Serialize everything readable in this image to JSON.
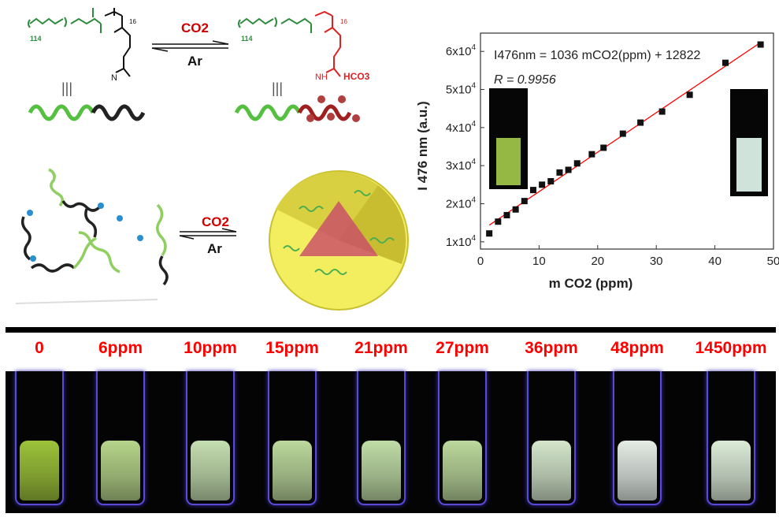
{
  "scheme_top": {
    "left_polymer": {
      "peg_repeat": "114",
      "pdmaema_repeat": "16",
      "amine": "N"
    },
    "right_polymer": {
      "peg_repeat": "114",
      "pdmaema_repeat": "16",
      "amine": "NH",
      "counterion": "HCO3"
    },
    "forward_label": "CO2",
    "reverse_label": "Ar",
    "equiv_symbol": "|||"
  },
  "scheme_bottom": {
    "forward_label": "CO2",
    "reverse_label": "Ar"
  },
  "colors": {
    "peg": "#2e8b3e",
    "protonated": "#e02020",
    "label_red": "#ff0000",
    "line": "#ff0000"
  },
  "chart_data": {
    "type": "scatter",
    "xlabel": "m CO2 (ppm)",
    "ylabel": "I 476 nm (a.u.)",
    "xlim": [
      0,
      50
    ],
    "ylim": [
      8100,
      64800
    ],
    "xticks": [
      "0",
      "10",
      "20",
      "30",
      "40",
      "50"
    ],
    "yticks": [
      "1x10^4",
      "2x10^4",
      "3x10^4",
      "4x10^4",
      "5x10^4",
      "6x10^4"
    ],
    "ytick_values": [
      10000,
      20000,
      30000,
      40000,
      50000,
      60000
    ],
    "xtick_values": [
      0,
      10,
      20,
      30,
      40,
      50
    ],
    "grid": false,
    "annotation_equation": "I476nm = 1036 mCO2(ppm) + 12822",
    "annotation_r": "R = 0.9956",
    "fit": {
      "slope": 1036,
      "intercept": 12822,
      "x_range": [
        1.5,
        47.8
      ]
    },
    "x": [
      1.5,
      3,
      4.5,
      6,
      7.5,
      9,
      10.5,
      12,
      13.5,
      15,
      16.5,
      19,
      21,
      24.3,
      27.3,
      31,
      35.7,
      41.8,
      47.8
    ],
    "y": [
      12200,
      15300,
      17000,
      18500,
      20700,
      23600,
      25000,
      25900,
      28200,
      28900,
      30600,
      33000,
      34700,
      38400,
      41300,
      44200,
      48600,
      57000,
      61800
    ]
  },
  "cuvettes": {
    "labels": [
      "0",
      "6ppm",
      "10ppm",
      "15ppm",
      "21ppm",
      "27ppm",
      "36ppm",
      "48ppm",
      "1450ppm"
    ],
    "colors": [
      "#9cc23a",
      "#b6d48a",
      "#c5deb0",
      "#bcd89c",
      "#c0dca6",
      "#bcd89c",
      "#d4e6cc",
      "#e4ece6",
      "#dcebd8"
    ]
  }
}
